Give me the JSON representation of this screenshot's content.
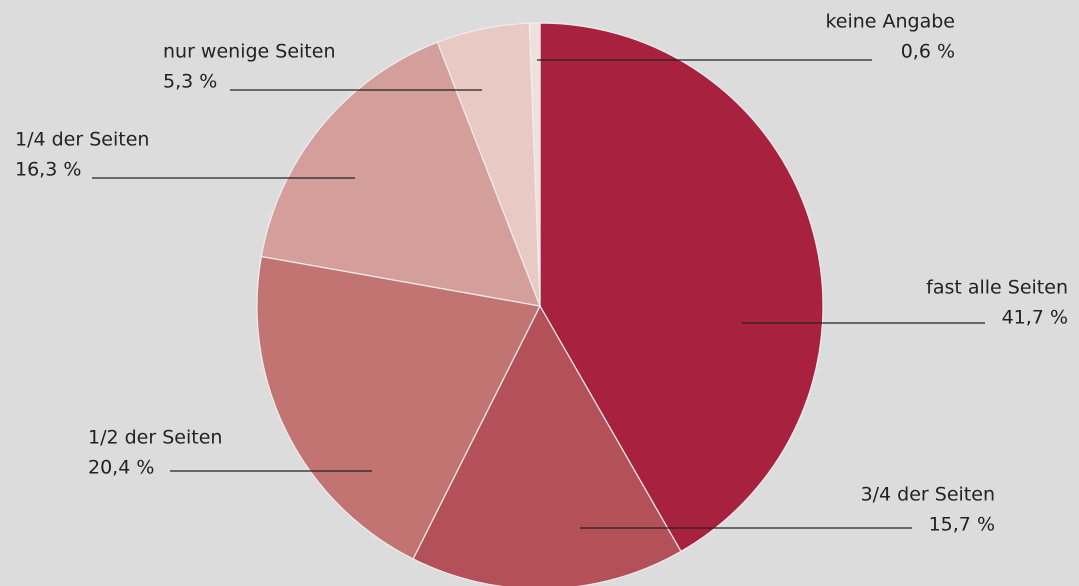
{
  "chart_data": {
    "type": "pie",
    "categories": [
      "fast alle Seiten",
      "3/4 der Seiten",
      "1/2 der Seiten",
      "1/4 der Seiten",
      "nur wenige Seiten",
      "keine Angabe"
    ],
    "values": [
      41.7,
      15.7,
      20.4,
      16.3,
      5.3,
      0.6
    ],
    "value_labels": [
      "41,7 %",
      "15,7 %",
      "20,4 %",
      "16,3 %",
      "5,3 %",
      "0,6 %"
    ],
    "colors": [
      "#a82240",
      "#b35058",
      "#c27473",
      "#d49e9a",
      "#e8c9c4",
      "#f0e0dc"
    ]
  }
}
